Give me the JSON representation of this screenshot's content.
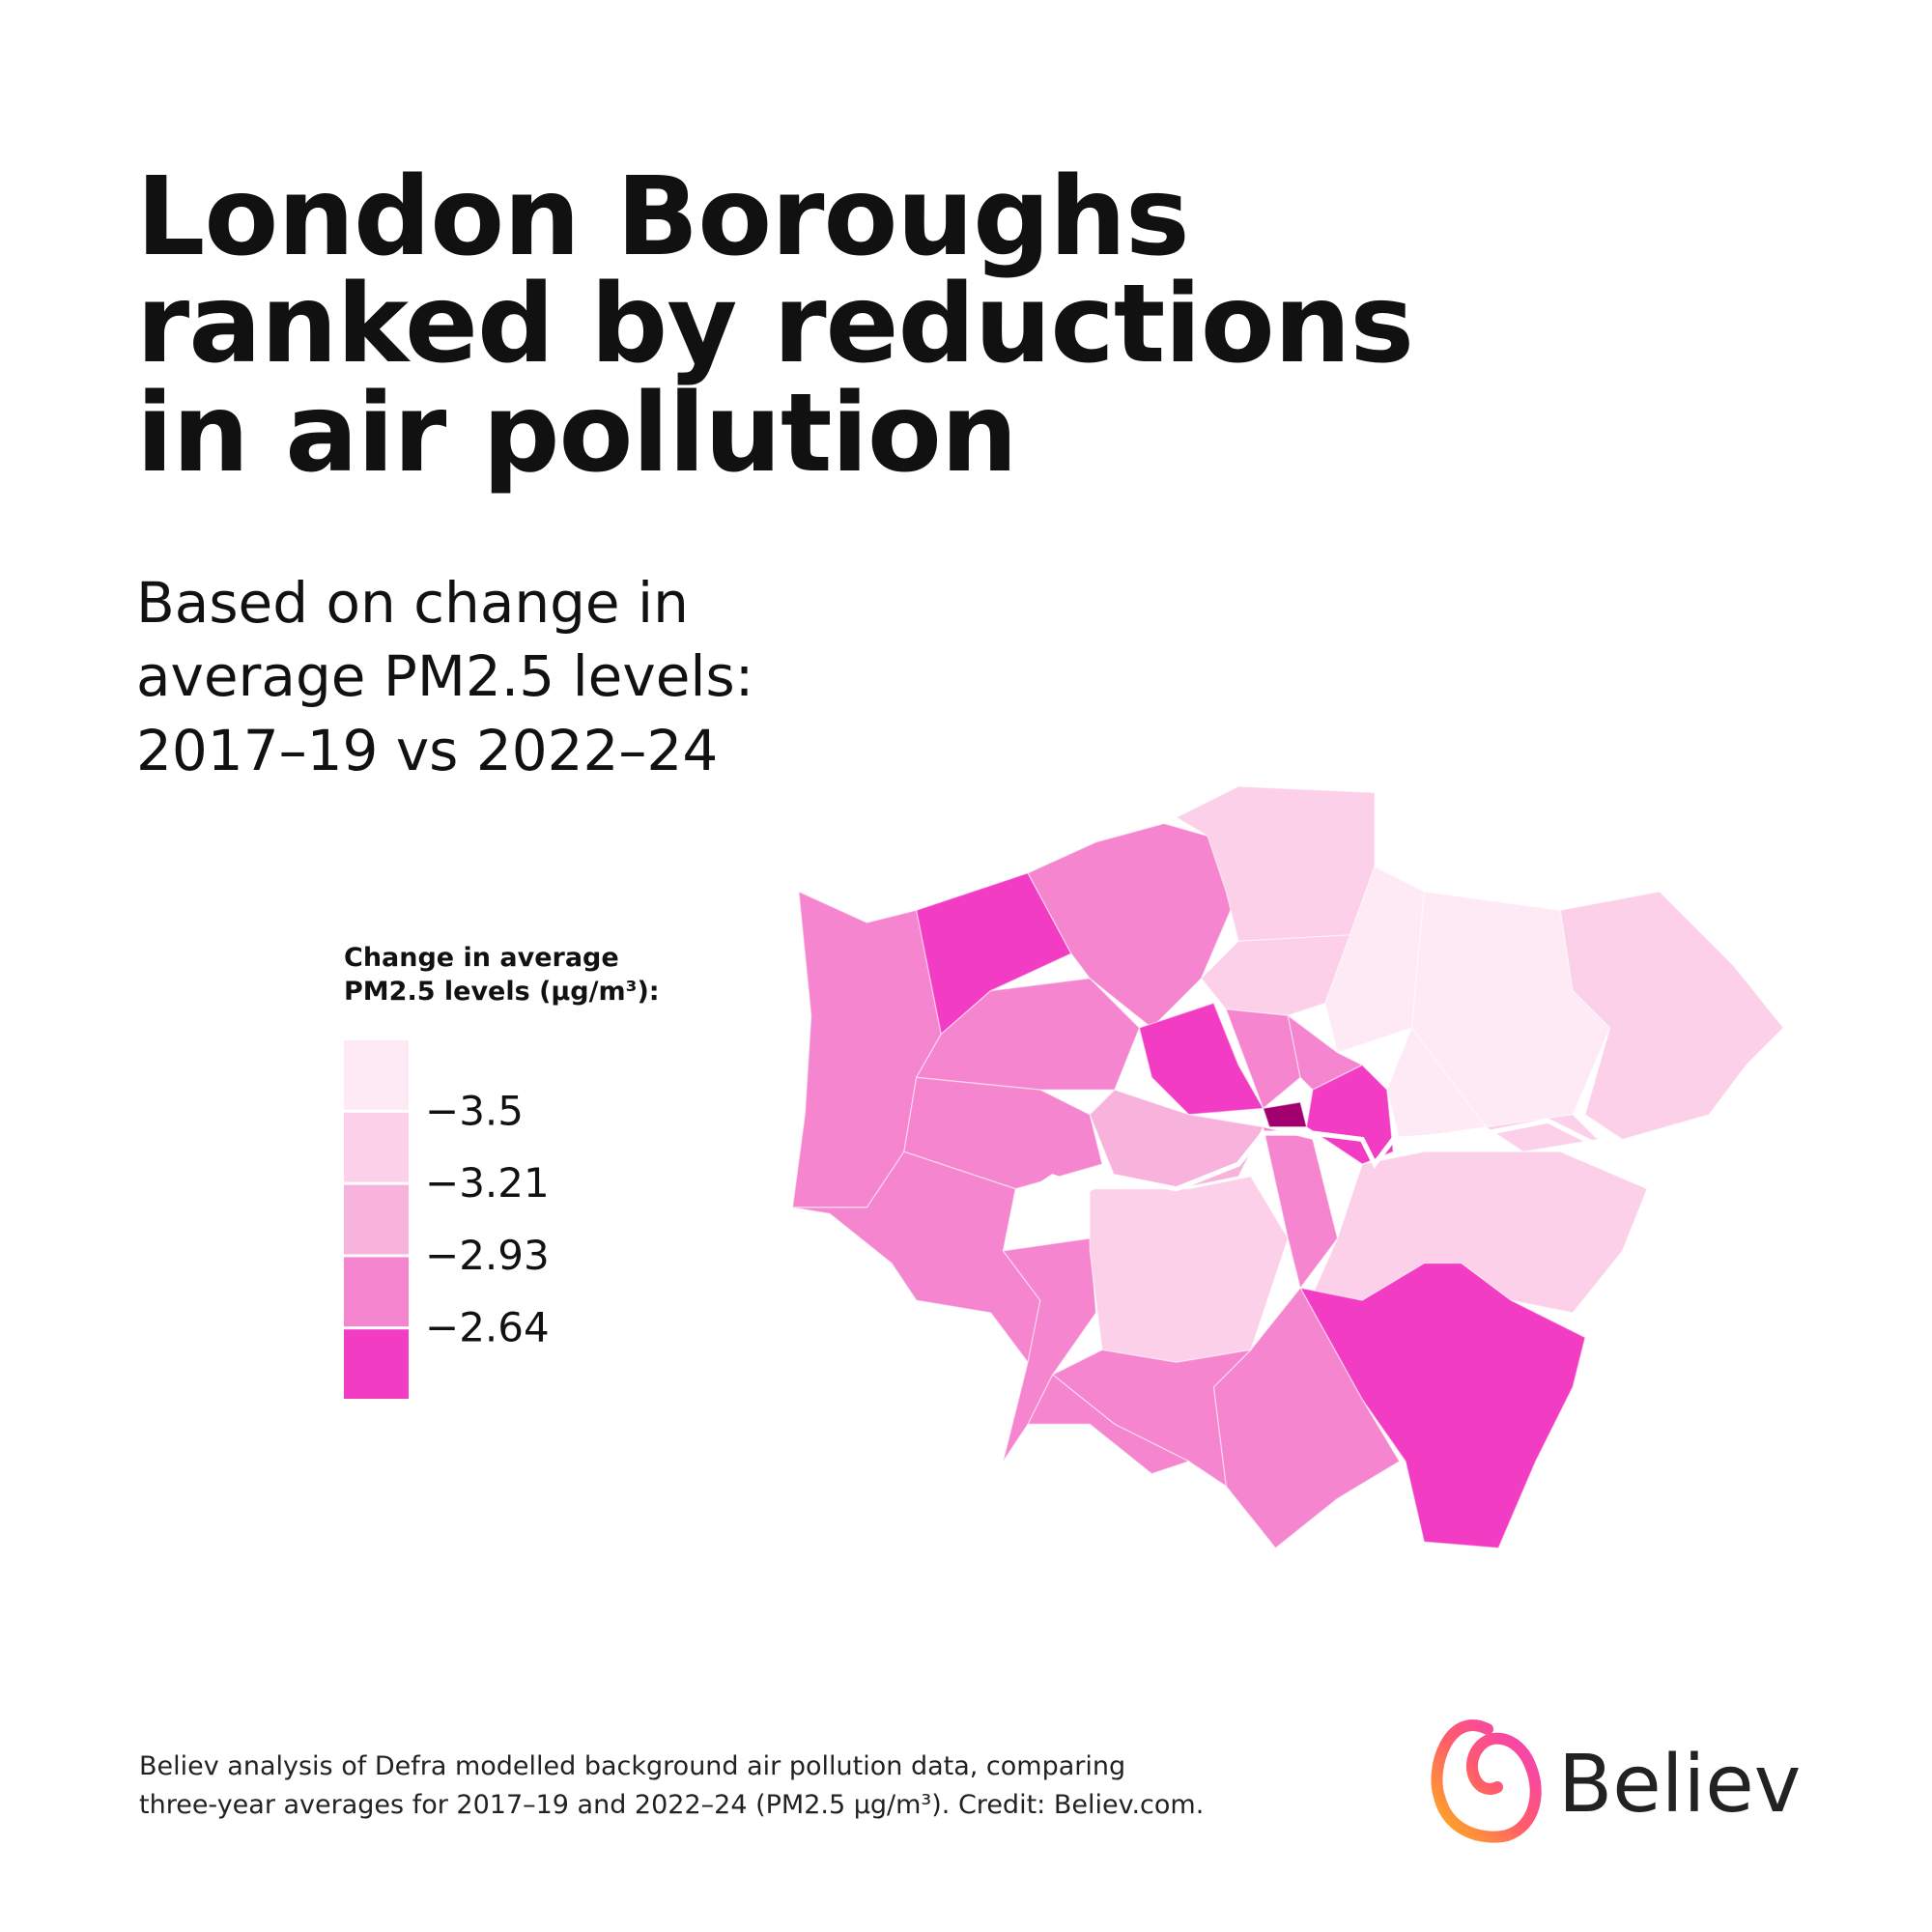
{
  "title": {
    "lines": [
      "London Boroughs",
      "ranked by reductions",
      "in air pollution"
    ]
  },
  "subtitle": {
    "lines": [
      "Based on change in",
      "average PM2.5 levels:",
      "2017–19 vs 2022–24"
    ]
  },
  "legend": {
    "title_lines": [
      "Change in average",
      "PM2.5 levels (µg/m³):"
    ],
    "colors": [
      "#fdeaf4",
      "#fbd0e8",
      "#f8b3dd",
      "#f585cf",
      "#f23cc4"
    ],
    "labels": [
      "−3.5",
      "−3.21",
      "−2.93",
      "−2.64"
    ]
  },
  "footer": {
    "lines": [
      "Believ analysis of Defra modelled background air pollution data, comparing",
      "three-year averages for 2017–19 and 2022–24 (PM2.5 µg/m³). Credit: Believ.com."
    ]
  },
  "logo": {
    "text": "Believ"
  }
}
